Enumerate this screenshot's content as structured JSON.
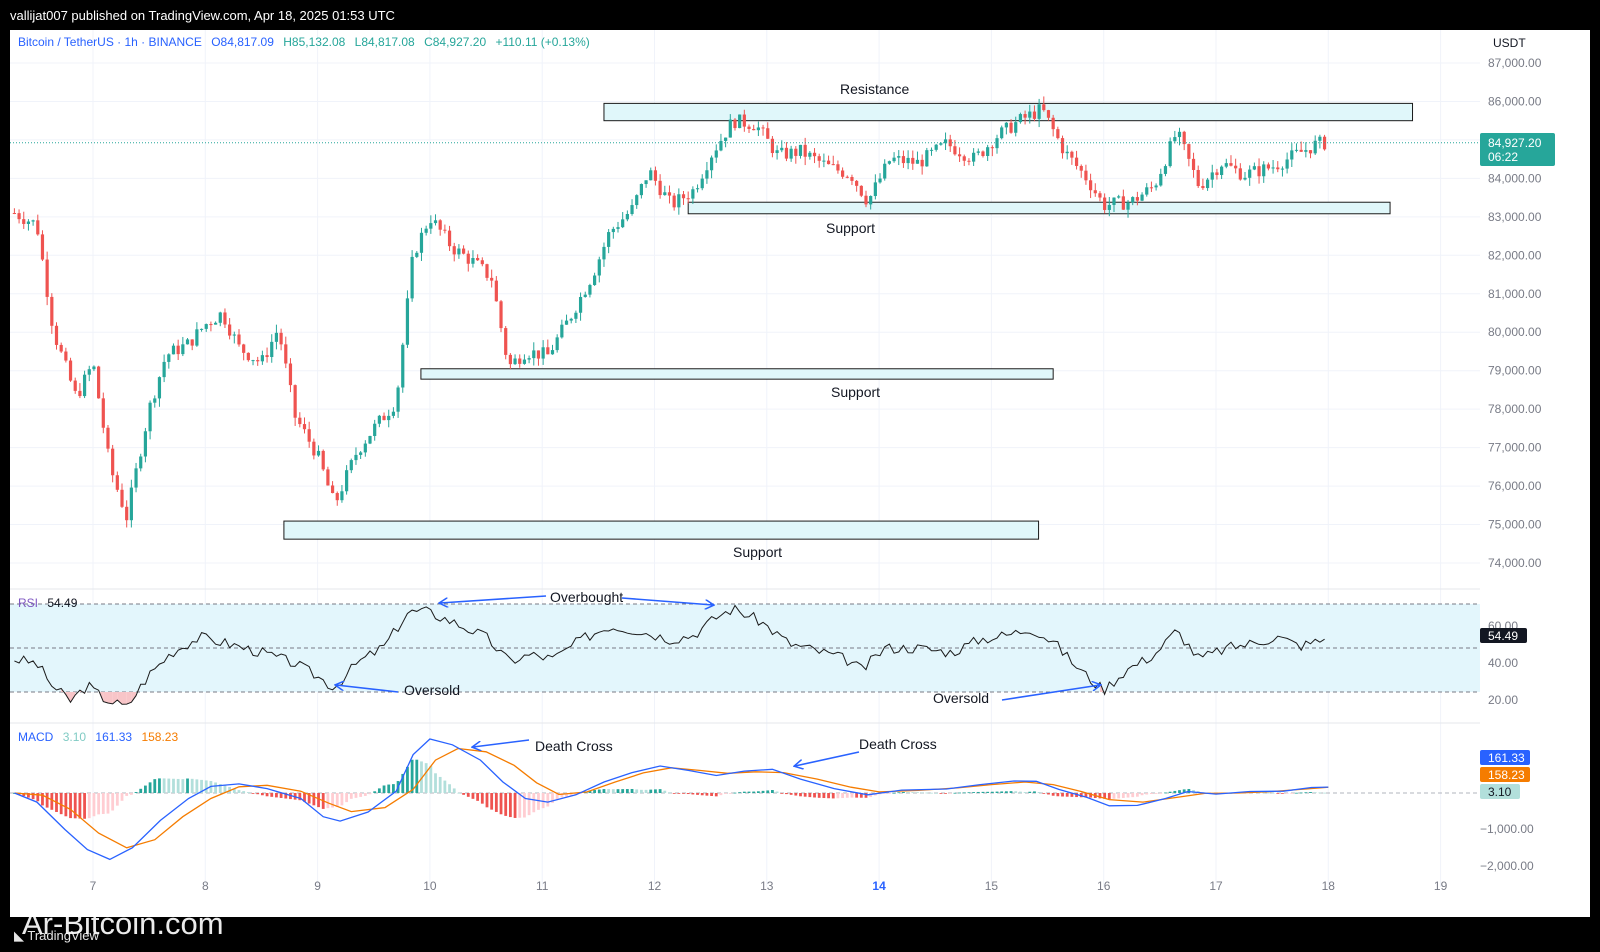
{
  "header": {
    "published": "vallijat007 published on TradingView.com, Apr 18, 2025 01:53 UTC"
  },
  "legend": {
    "symbol": "Bitcoin / TetherUS · 1h · BINANCE",
    "open": "O84,817.09",
    "high": "H85,132.08",
    "low": "L84,817.08",
    "close": "C84,927.20",
    "change": "+110.11 (+0.13%)"
  },
  "currency": "USDT",
  "price_tag": {
    "price": "84,927.20",
    "countdown": "06:22"
  },
  "colors": {
    "up": "#26a69a",
    "down": "#ef5350",
    "zone_fill": "#e0f7fa",
    "zone_stroke": "#1a1a1a",
    "rsi": "#1a1a1a",
    "rsi_band": "#e3f6fc",
    "macd": "#2962ff",
    "signal": "#f57c00",
    "arrow": "#2962ff"
  },
  "rsi_panel": {
    "label": "RSI",
    "value": "54.49",
    "ticks": [
      "60.00",
      "40.00",
      "20.00"
    ],
    "tag": "54.49"
  },
  "macd_panel": {
    "label": "MACD",
    "hist_value": "3.10",
    "macd_value": "161.33",
    "signal_value": "158.23",
    "ticks": [
      "−1,000.00",
      "−2,000.00"
    ],
    "tags": [
      "161.33",
      "158.23",
      "3.10"
    ]
  },
  "annotations": {
    "resistance": "Resistance",
    "support1": "Support",
    "support2": "Support",
    "support3": "Support",
    "overbought": "Overbought",
    "oversold1": "Oversold",
    "oversold2": "Oversold",
    "death_cross1": "Death Cross",
    "death_cross2": "Death Cross"
  },
  "watermark": {
    "site": "Ar-Bitcoin.com",
    "brand": "TradingView"
  },
  "chart_data": {
    "type": "candlestick",
    "x_ticks": [
      "7",
      "8",
      "9",
      "10",
      "11",
      "12",
      "13",
      "14",
      "15",
      "16",
      "17",
      "18",
      "19"
    ],
    "y_ticks": [
      "87,000.00",
      "86,000.00",
      "85,000.00",
      "84,000.00",
      "83,000.00",
      "82,000.00",
      "81,000.00",
      "80,000.00",
      "79,000.00",
      "78,000.00",
      "77,000.00",
      "76,000.00",
      "75,000.00",
      "74,000.00"
    ],
    "ylim": [
      73600,
      87300
    ],
    "xlim": [
      6.27,
      19.3
    ],
    "last_price": 84927.2,
    "path": [
      [
        6.3,
        83100
      ],
      [
        6.5,
        82800
      ],
      [
        6.65,
        80000
      ],
      [
        6.85,
        78300
      ],
      [
        7.0,
        79200
      ],
      [
        7.15,
        76500
      ],
      [
        7.3,
        75200
      ],
      [
        7.5,
        78000
      ],
      [
        7.65,
        79400
      ],
      [
        7.85,
        79700
      ],
      [
        8.0,
        80200
      ],
      [
        8.15,
        80500
      ],
      [
        8.3,
        79600
      ],
      [
        8.5,
        79200
      ],
      [
        8.65,
        80100
      ],
      [
        8.8,
        77800
      ],
      [
        9.0,
        76800
      ],
      [
        9.15,
        75500
      ],
      [
        9.35,
        76900
      ],
      [
        9.5,
        77500
      ],
      [
        9.7,
        78200
      ],
      [
        9.85,
        82000
      ],
      [
        10.0,
        83000
      ],
      [
        10.2,
        82200
      ],
      [
        10.4,
        81800
      ],
      [
        10.55,
        81400
      ],
      [
        10.7,
        79100
      ],
      [
        10.85,
        79500
      ],
      [
        11.05,
        79400
      ],
      [
        11.25,
        80400
      ],
      [
        11.45,
        81500
      ],
      [
        11.6,
        82600
      ],
      [
        11.8,
        83200
      ],
      [
        11.95,
        84200
      ],
      [
        12.15,
        83300
      ],
      [
        12.35,
        83700
      ],
      [
        12.5,
        84600
      ],
      [
        12.7,
        85500
      ],
      [
        12.9,
        85400
      ],
      [
        13.1,
        84600
      ],
      [
        13.3,
        84700
      ],
      [
        13.55,
        84300
      ],
      [
        13.75,
        84100
      ],
      [
        13.9,
        83400
      ],
      [
        14.1,
        84500
      ],
      [
        14.35,
        84400
      ],
      [
        14.6,
        84900
      ],
      [
        14.85,
        84500
      ],
      [
        15.05,
        85100
      ],
      [
        15.25,
        85500
      ],
      [
        15.45,
        85800
      ],
      [
        15.65,
        84700
      ],
      [
        15.85,
        84000
      ],
      [
        16.0,
        83300
      ],
      [
        16.25,
        83400
      ],
      [
        16.45,
        83800
      ],
      [
        16.65,
        85200
      ],
      [
        16.85,
        83800
      ],
      [
        17.05,
        84400
      ],
      [
        17.25,
        84100
      ],
      [
        17.5,
        84300
      ],
      [
        17.7,
        84600
      ],
      [
        17.9,
        84900
      ],
      [
        18.0,
        84927
      ]
    ],
    "resistance_zone": {
      "x": [
        11.55,
        18.75
      ],
      "y": [
        85500,
        85950
      ]
    },
    "support_zones": [
      {
        "x": [
          12.3,
          18.55
        ],
        "y": [
          83080,
          83380
        ]
      },
      {
        "x": [
          9.92,
          15.55
        ],
        "y": [
          78780,
          79050
        ]
      },
      {
        "x": [
          8.7,
          15.42
        ],
        "y": [
          74620,
          75090
        ]
      }
    ],
    "rsi": {
      "ylim": [
        13,
        72
      ],
      "levels": [
        70,
        50,
        30
      ],
      "path": [
        [
          6.3,
          45
        ],
        [
          6.5,
          43
        ],
        [
          6.65,
          32
        ],
        [
          6.8,
          26
        ],
        [
          6.95,
          33
        ],
        [
          7.1,
          27
        ],
        [
          7.3,
          23
        ],
        [
          7.5,
          38
        ],
        [
          7.7,
          48
        ],
        [
          7.95,
          55
        ],
        [
          8.2,
          52
        ],
        [
          8.5,
          48
        ],
        [
          8.8,
          43
        ],
        [
          9.0,
          37
        ],
        [
          9.15,
          32
        ],
        [
          9.35,
          43
        ],
        [
          9.6,
          51
        ],
        [
          9.8,
          66
        ],
        [
          9.95,
          67
        ],
        [
          10.2,
          62
        ],
        [
          10.5,
          55
        ],
        [
          10.7,
          44
        ],
        [
          10.9,
          47
        ],
        [
          11.1,
          45
        ],
        [
          11.35,
          54
        ],
        [
          11.6,
          60
        ],
        [
          11.85,
          58
        ],
        [
          12.15,
          54
        ],
        [
          12.35,
          56
        ],
        [
          12.55,
          64
        ],
        [
          12.7,
          68
        ],
        [
          12.95,
          62
        ],
        [
          13.2,
          52
        ],
        [
          13.5,
          48
        ],
        [
          13.7,
          45
        ],
        [
          13.85,
          40
        ],
        [
          14.05,
          50
        ],
        [
          14.35,
          50
        ],
        [
          14.65,
          48
        ],
        [
          14.9,
          54
        ],
        [
          15.15,
          56
        ],
        [
          15.35,
          59
        ],
        [
          15.55,
          53
        ],
        [
          15.75,
          42
        ],
        [
          15.9,
          35
        ],
        [
          16.0,
          31
        ],
        [
          16.2,
          40
        ],
        [
          16.45,
          47
        ],
        [
          16.65,
          58
        ],
        [
          16.85,
          45
        ],
        [
          17.1,
          50
        ],
        [
          17.3,
          52
        ],
        [
          17.55,
          55
        ],
        [
          17.75,
          51
        ],
        [
          17.9,
          53
        ],
        [
          18.0,
          54.5
        ]
      ]
    },
    "macd": {
      "ylim": [
        -2700,
        2050
      ],
      "zero": 0,
      "macd_line": [
        [
          6.3,
          0
        ],
        [
          6.5,
          -250
        ],
        [
          6.75,
          -1000
        ],
        [
          6.95,
          -1550
        ],
        [
          7.15,
          -1820
        ],
        [
          7.35,
          -1500
        ],
        [
          7.6,
          -750
        ],
        [
          7.85,
          -150
        ],
        [
          8.05,
          180
        ],
        [
          8.3,
          250
        ],
        [
          8.55,
          120
        ],
        [
          8.85,
          -150
        ],
        [
          9.05,
          -650
        ],
        [
          9.2,
          -770
        ],
        [
          9.45,
          -520
        ],
        [
          9.7,
          50
        ],
        [
          9.85,
          1050
        ],
        [
          10.0,
          1480
        ],
        [
          10.2,
          1320
        ],
        [
          10.45,
          900
        ],
        [
          10.65,
          300
        ],
        [
          10.85,
          -150
        ],
        [
          11.05,
          -250
        ],
        [
          11.3,
          -50
        ],
        [
          11.55,
          300
        ],
        [
          11.8,
          560
        ],
        [
          12.05,
          740
        ],
        [
          12.3,
          620
        ],
        [
          12.55,
          480
        ],
        [
          12.8,
          600
        ],
        [
          13.05,
          650
        ],
        [
          13.3,
          380
        ],
        [
          13.6,
          120
        ],
        [
          13.9,
          -50
        ],
        [
          14.2,
          80
        ],
        [
          14.6,
          110
        ],
        [
          14.9,
          230
        ],
        [
          15.2,
          330
        ],
        [
          15.4,
          320
        ],
        [
          15.6,
          100
        ],
        [
          15.85,
          -120
        ],
        [
          16.05,
          -350
        ],
        [
          16.3,
          -340
        ],
        [
          16.55,
          -150
        ],
        [
          16.75,
          40
        ],
        [
          17.0,
          -30
        ],
        [
          17.3,
          40
        ],
        [
          17.6,
          50
        ],
        [
          17.85,
          150
        ],
        [
          18.0,
          161
        ]
      ],
      "signal_line": [
        [
          6.3,
          0
        ],
        [
          6.55,
          -60
        ],
        [
          6.8,
          -450
        ],
        [
          7.05,
          -1100
        ],
        [
          7.3,
          -1500
        ],
        [
          7.55,
          -1280
        ],
        [
          7.8,
          -650
        ],
        [
          8.05,
          -150
        ],
        [
          8.3,
          170
        ],
        [
          8.55,
          210
        ],
        [
          8.85,
          50
        ],
        [
          9.1,
          -280
        ],
        [
          9.3,
          -510
        ],
        [
          9.6,
          -400
        ],
        [
          9.85,
          100
        ],
        [
          10.05,
          900
        ],
        [
          10.25,
          1220
        ],
        [
          10.5,
          1130
        ],
        [
          10.75,
          760
        ],
        [
          10.95,
          280
        ],
        [
          11.15,
          -40
        ],
        [
          11.4,
          30
        ],
        [
          11.65,
          300
        ],
        [
          11.9,
          550
        ],
        [
          12.15,
          690
        ],
        [
          12.4,
          620
        ],
        [
          12.65,
          540
        ],
        [
          12.9,
          580
        ],
        [
          13.15,
          560
        ],
        [
          13.45,
          380
        ],
        [
          13.75,
          160
        ],
        [
          14.0,
          30
        ],
        [
          14.35,
          70
        ],
        [
          14.7,
          140
        ],
        [
          15.0,
          230
        ],
        [
          15.3,
          300
        ],
        [
          15.55,
          230
        ],
        [
          15.8,
          40
        ],
        [
          16.05,
          -180
        ],
        [
          16.35,
          -250
        ],
        [
          16.65,
          -120
        ],
        [
          16.9,
          -10
        ],
        [
          17.2,
          0
        ],
        [
          17.5,
          40
        ],
        [
          17.8,
          110
        ],
        [
          18.0,
          158
        ]
      ]
    }
  }
}
